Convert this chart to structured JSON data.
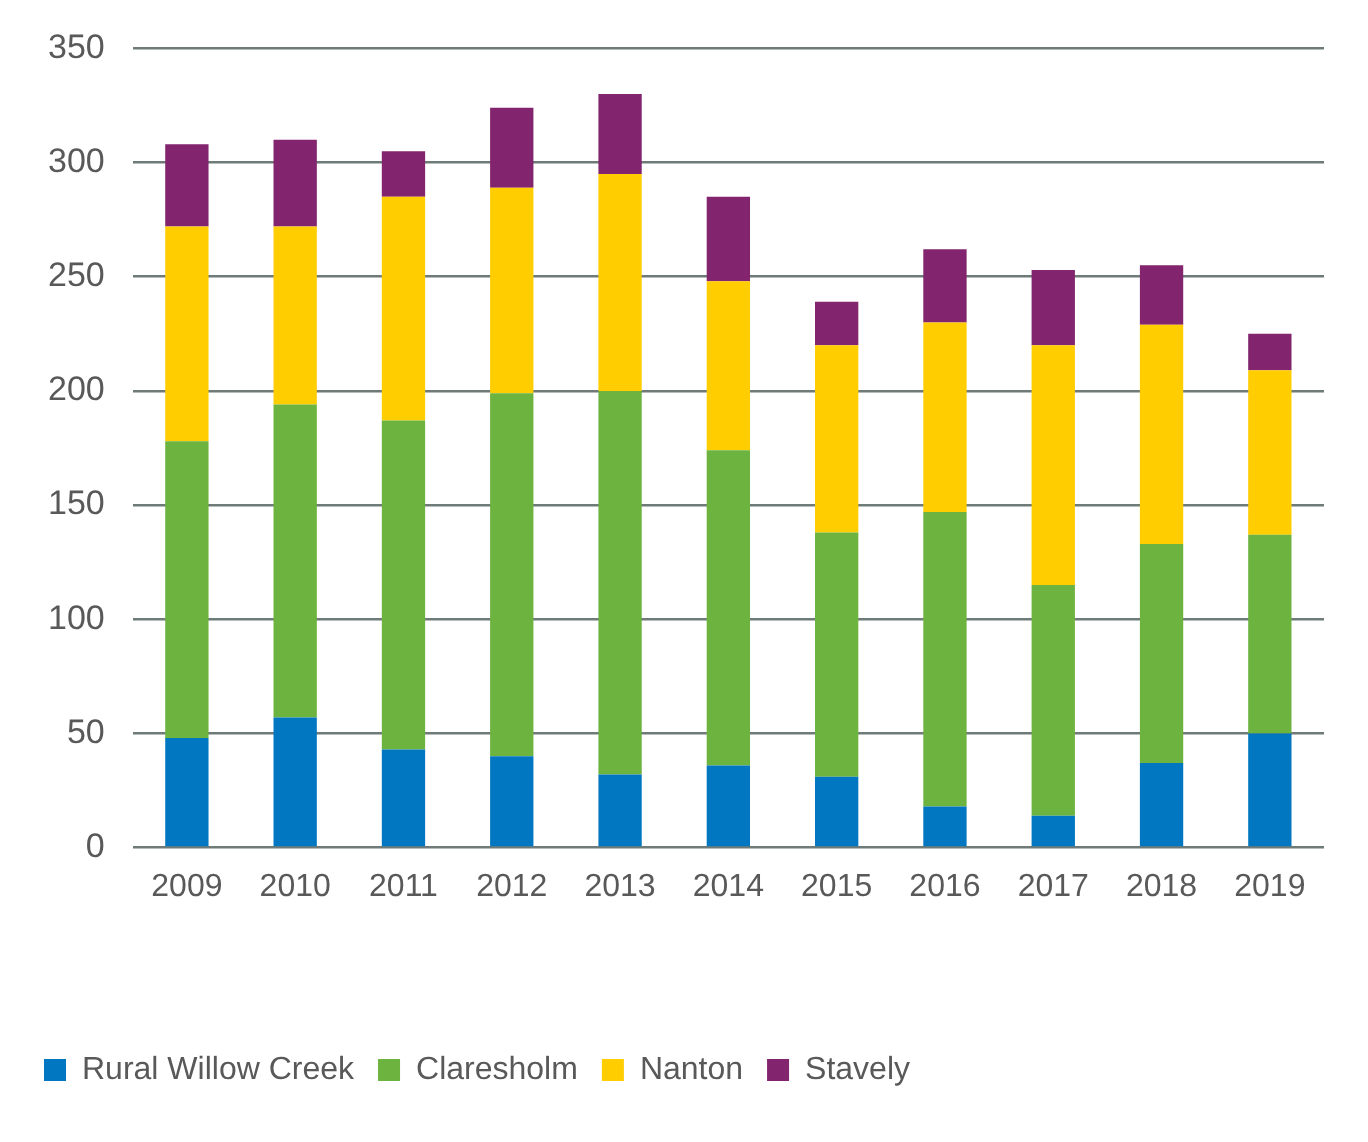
{
  "chart_data": {
    "type": "bar",
    "stacked": true,
    "categories": [
      "2009",
      "2010",
      "2011",
      "2012",
      "2013",
      "2014",
      "2015",
      "2016",
      "2017",
      "2018",
      "2019"
    ],
    "series": [
      {
        "name": "Rural Willow Creek",
        "color": "#0077c0",
        "values": [
          48,
          57,
          43,
          40,
          32,
          36,
          31,
          18,
          14,
          37,
          50
        ]
      },
      {
        "name": "Claresholm",
        "color": "#6db33f",
        "values": [
          130,
          137,
          144,
          159,
          168,
          138,
          107,
          129,
          101,
          96,
          87
        ]
      },
      {
        "name": "Nanton",
        "color": "#ffcd00",
        "values": [
          94,
          78,
          98,
          90,
          95,
          74,
          82,
          83,
          105,
          96,
          72
        ]
      },
      {
        "name": "Stavely",
        "color": "#82246e",
        "values": [
          36,
          38,
          20,
          35,
          35,
          37,
          19,
          32,
          33,
          26,
          16
        ]
      }
    ],
    "ylim": [
      0,
      350
    ],
    "yticks": [
      0,
      50,
      100,
      150,
      200,
      250,
      300,
      350
    ],
    "grid": "y",
    "legend": "bottom left"
  }
}
